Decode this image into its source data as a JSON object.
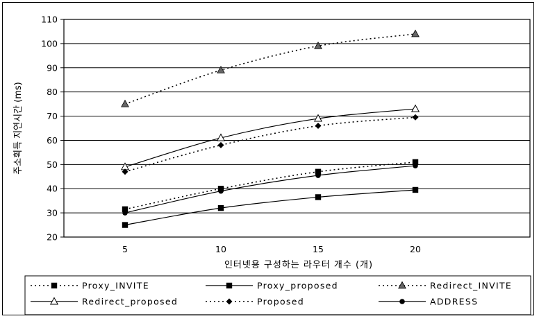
{
  "chart_data": {
    "type": "line",
    "xlabel": "인터넷용 구성하는 라우터 개수 (개)",
    "ylabel": "주소획득 지연시간 (ms)",
    "categories": [
      "5",
      "10",
      "15",
      "20"
    ],
    "ylim": [
      20,
      110
    ],
    "yticks": [
      20,
      30,
      40,
      50,
      60,
      70,
      80,
      90,
      100,
      110
    ],
    "grid": "horizontal",
    "legend_position": "bottom",
    "series": [
      {
        "name": "Proxy_INVITE",
        "values": [
          31.5,
          40,
          47,
          51
        ],
        "marker": "square",
        "dash": "dotted",
        "color": "#000000"
      },
      {
        "name": "Proxy_proposed",
        "values": [
          25,
          32,
          36.5,
          39.5
        ],
        "marker": "square",
        "dash": "solid",
        "color": "#000000"
      },
      {
        "name": "Redirect_INVITE",
        "values": [
          75,
          89,
          99,
          104
        ],
        "marker": "triangle",
        "dash": "dotted",
        "color": "#000000"
      },
      {
        "name": "Redirect_proposed",
        "values": [
          49,
          61,
          69,
          73
        ],
        "marker": "triangle-open",
        "dash": "solid",
        "color": "#000000"
      },
      {
        "name": "Proposed",
        "values": [
          47,
          58,
          66,
          69.5
        ],
        "marker": "diamond",
        "dash": "dotted",
        "color": "#000000"
      },
      {
        "name": "ADDRESS",
        "values": [
          30,
          39,
          45.5,
          49.5
        ],
        "marker": "circle",
        "dash": "solid",
        "color": "#000000"
      }
    ]
  }
}
